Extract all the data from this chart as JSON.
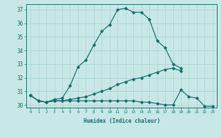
{
  "xlabel": "Humidex (Indice chaleur)",
  "background_color": "#c8e8e8",
  "grid_color": "#a8d0d0",
  "line_color": "#1a6b6b",
  "xlim": [
    -0.5,
    23.5
  ],
  "ylim": [
    29.8,
    37.4
  ],
  "x_all": [
    0,
    1,
    2,
    3,
    4,
    5,
    6,
    7,
    8,
    9,
    10,
    11,
    12,
    13,
    14,
    15,
    16,
    17,
    18,
    19,
    20,
    21,
    22,
    23
  ],
  "line1_x": [
    0,
    1,
    2,
    3,
    4,
    5,
    6,
    7,
    8,
    9,
    10,
    11,
    12,
    13,
    14,
    15,
    16,
    17,
    18,
    19
  ],
  "line1_y": [
    30.7,
    30.3,
    30.2,
    30.4,
    30.5,
    31.4,
    32.8,
    33.3,
    34.4,
    35.4,
    35.9,
    37.0,
    37.1,
    36.8,
    36.8,
    36.3,
    34.7,
    34.2,
    33.0,
    32.7
  ],
  "line2_x": [
    0,
    1,
    2,
    3,
    4,
    5,
    6,
    7,
    8,
    9,
    10,
    11,
    12,
    13,
    14,
    15,
    16,
    17,
    18,
    19
  ],
  "line2_y": [
    30.7,
    30.3,
    30.2,
    30.3,
    30.3,
    30.4,
    30.5,
    30.6,
    30.8,
    31.0,
    31.2,
    31.5,
    31.7,
    31.9,
    32.0,
    32.2,
    32.4,
    32.6,
    32.7,
    32.5
  ],
  "line3_x": [
    0,
    1,
    2,
    3,
    4,
    5,
    6,
    7,
    8,
    9,
    10,
    11,
    12,
    13,
    14,
    15,
    16,
    17,
    18,
    19,
    20,
    21,
    22,
    23
  ],
  "line3_y": [
    30.7,
    30.3,
    30.2,
    30.3,
    30.3,
    30.3,
    30.3,
    30.3,
    30.3,
    30.3,
    30.3,
    30.3,
    30.3,
    30.3,
    30.2,
    30.2,
    30.1,
    30.0,
    30.0,
    31.1,
    30.6,
    30.5,
    29.9,
    29.9
  ],
  "yticks": [
    30,
    31,
    32,
    33,
    34,
    35,
    36,
    37
  ],
  "xticks": [
    0,
    1,
    2,
    3,
    4,
    5,
    6,
    7,
    8,
    9,
    10,
    11,
    12,
    13,
    14,
    15,
    16,
    17,
    18,
    19,
    20,
    21,
    22,
    23
  ]
}
